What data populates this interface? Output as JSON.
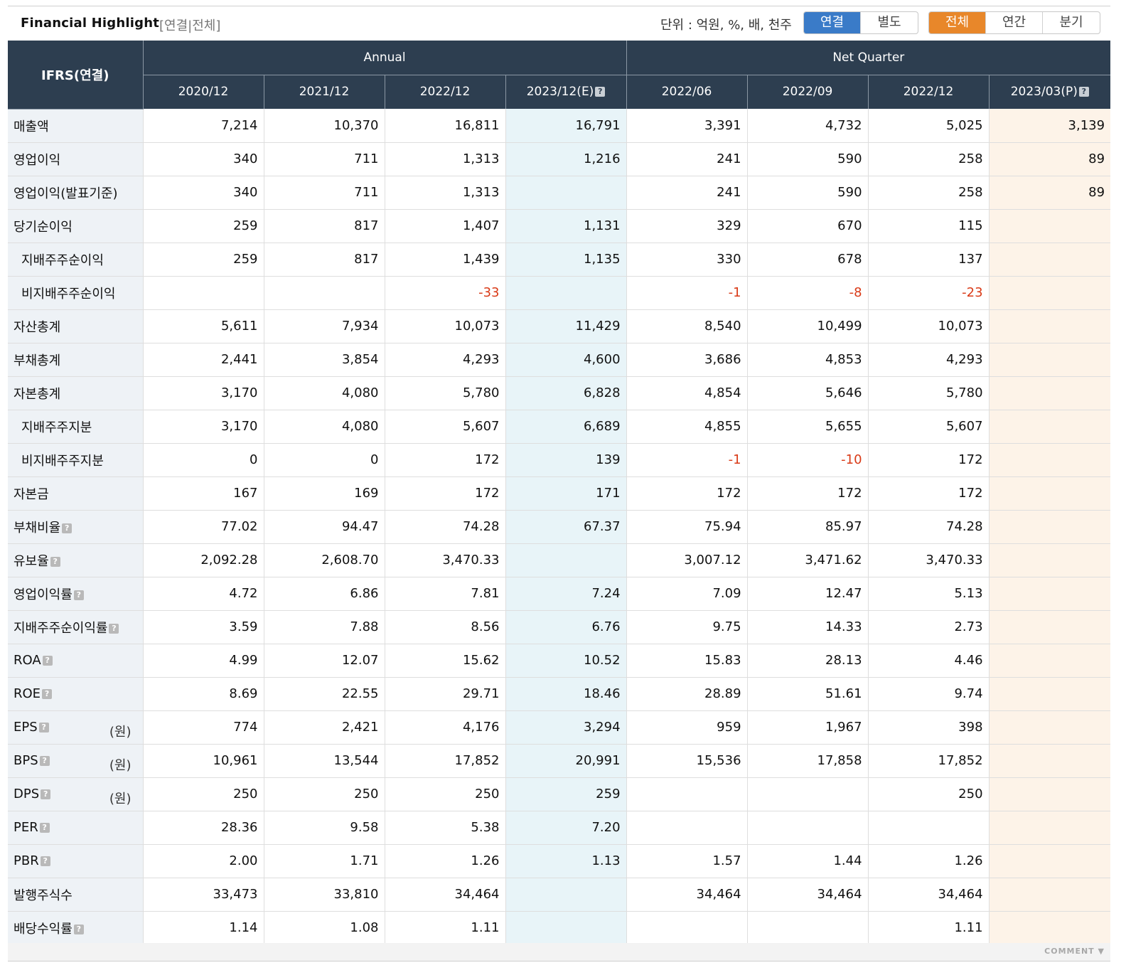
{
  "header": {
    "title": "Financial Highlight",
    "subtitle": "[연결|전체]",
    "unit_label": "단위 : 억원, %, 배, 천주",
    "basis_buttons": [
      "연결",
      "별도"
    ],
    "basis_active": 0,
    "period_buttons": [
      "전체",
      "연간",
      "분기"
    ],
    "period_active": 0
  },
  "table": {
    "corner": "IFRS(연결)",
    "group_annual": "Annual",
    "group_quarter": "Net Quarter",
    "columns": [
      "2020/12",
      "2021/12",
      "2022/12",
      "2023/12(E)",
      "2022/06",
      "2022/09",
      "2022/12",
      "2023/03(P)"
    ],
    "columns_help": [
      false,
      false,
      false,
      true,
      false,
      false,
      false,
      true
    ],
    "rows": [
      {
        "label": "매출액",
        "sub": false,
        "help": false,
        "unit": "",
        "values": [
          "7,214",
          "10,370",
          "16,811",
          "16,791",
          "3,391",
          "4,732",
          "5,025",
          "3,139"
        ]
      },
      {
        "label": "영업이익",
        "sub": false,
        "help": false,
        "unit": "",
        "values": [
          "340",
          "711",
          "1,313",
          "1,216",
          "241",
          "590",
          "258",
          "89"
        ]
      },
      {
        "label": "영업이익(발표기준)",
        "sub": false,
        "help": false,
        "unit": "",
        "values": [
          "340",
          "711",
          "1,313",
          "",
          "241",
          "590",
          "258",
          "89"
        ]
      },
      {
        "label": "당기순이익",
        "sub": false,
        "help": false,
        "unit": "",
        "values": [
          "259",
          "817",
          "1,407",
          "1,131",
          "329",
          "670",
          "115",
          ""
        ]
      },
      {
        "label": "지배주주순이익",
        "sub": true,
        "help": false,
        "unit": "",
        "values": [
          "259",
          "817",
          "1,439",
          "1,135",
          "330",
          "678",
          "137",
          ""
        ]
      },
      {
        "label": "비지배주주순이익",
        "sub": true,
        "help": false,
        "unit": "",
        "values": [
          "",
          "",
          "-33",
          "",
          "-1",
          "-8",
          "-23",
          ""
        ]
      },
      {
        "label": "자산총계",
        "sub": false,
        "help": false,
        "unit": "",
        "values": [
          "5,611",
          "7,934",
          "10,073",
          "11,429",
          "8,540",
          "10,499",
          "10,073",
          ""
        ]
      },
      {
        "label": "부채총계",
        "sub": false,
        "help": false,
        "unit": "",
        "values": [
          "2,441",
          "3,854",
          "4,293",
          "4,600",
          "3,686",
          "4,853",
          "4,293",
          ""
        ]
      },
      {
        "label": "자본총계",
        "sub": false,
        "help": false,
        "unit": "",
        "values": [
          "3,170",
          "4,080",
          "5,780",
          "6,828",
          "4,854",
          "5,646",
          "5,780",
          ""
        ]
      },
      {
        "label": "지배주주지분",
        "sub": true,
        "help": false,
        "unit": "",
        "values": [
          "3,170",
          "4,080",
          "5,607",
          "6,689",
          "4,855",
          "5,655",
          "5,607",
          ""
        ]
      },
      {
        "label": "비지배주주지분",
        "sub": true,
        "help": false,
        "unit": "",
        "values": [
          "0",
          "0",
          "172",
          "139",
          "-1",
          "-10",
          "172",
          ""
        ]
      },
      {
        "label": "자본금",
        "sub": false,
        "help": false,
        "unit": "",
        "values": [
          "167",
          "169",
          "172",
          "171",
          "172",
          "172",
          "172",
          ""
        ]
      },
      {
        "label": "부채비율",
        "sub": false,
        "help": true,
        "unit": "",
        "values": [
          "77.02",
          "94.47",
          "74.28",
          "67.37",
          "75.94",
          "85.97",
          "74.28",
          ""
        ]
      },
      {
        "label": "유보율",
        "sub": false,
        "help": true,
        "unit": "",
        "values": [
          "2,092.28",
          "2,608.70",
          "3,470.33",
          "",
          "3,007.12",
          "3,471.62",
          "3,470.33",
          ""
        ]
      },
      {
        "label": "영업이익률",
        "sub": false,
        "help": true,
        "unit": "",
        "values": [
          "4.72",
          "6.86",
          "7.81",
          "7.24",
          "7.09",
          "12.47",
          "5.13",
          ""
        ]
      },
      {
        "label": "지배주주순이익률",
        "sub": false,
        "help": true,
        "unit": "",
        "values": [
          "3.59",
          "7.88",
          "8.56",
          "6.76",
          "9.75",
          "14.33",
          "2.73",
          ""
        ]
      },
      {
        "label": "ROA",
        "sub": false,
        "help": true,
        "unit": "",
        "values": [
          "4.99",
          "12.07",
          "15.62",
          "10.52",
          "15.83",
          "28.13",
          "4.46",
          ""
        ]
      },
      {
        "label": "ROE",
        "sub": false,
        "help": true,
        "unit": "",
        "values": [
          "8.69",
          "22.55",
          "29.71",
          "18.46",
          "28.89",
          "51.61",
          "9.74",
          ""
        ]
      },
      {
        "label": "EPS",
        "sub": false,
        "help": true,
        "unit": "(원)",
        "values": [
          "774",
          "2,421",
          "4,176",
          "3,294",
          "959",
          "1,967",
          "398",
          ""
        ]
      },
      {
        "label": "BPS",
        "sub": false,
        "help": true,
        "unit": "(원)",
        "values": [
          "10,961",
          "13,544",
          "17,852",
          "20,991",
          "15,536",
          "17,858",
          "17,852",
          ""
        ]
      },
      {
        "label": "DPS",
        "sub": false,
        "help": true,
        "unit": "(원)",
        "values": [
          "250",
          "250",
          "250",
          "259",
          "",
          "",
          "250",
          ""
        ]
      },
      {
        "label": "PER",
        "sub": false,
        "help": true,
        "unit": "",
        "values": [
          "28.36",
          "9.58",
          "5.38",
          "7.20",
          "",
          "",
          "",
          ""
        ]
      },
      {
        "label": "PBR",
        "sub": false,
        "help": true,
        "unit": "",
        "values": [
          "2.00",
          "1.71",
          "1.26",
          "1.13",
          "1.57",
          "1.44",
          "1.26",
          ""
        ]
      },
      {
        "label": "발행주식수",
        "sub": false,
        "help": false,
        "unit": "",
        "values": [
          "33,473",
          "33,810",
          "34,464",
          "",
          "34,464",
          "34,464",
          "34,464",
          ""
        ]
      },
      {
        "label": "배당수익률",
        "sub": false,
        "help": true,
        "unit": "",
        "values": [
          "1.14",
          "1.08",
          "1.11",
          "",
          "",
          "",
          "1.11",
          ""
        ]
      }
    ]
  },
  "footer": {
    "comment_label": "COMMENT"
  },
  "colors": {
    "header_bg": "#2d3e50",
    "active_blue": "#3a7bc8",
    "active_orange": "#e8872a",
    "negative": "#d93a17",
    "estimate_bg": "#e8f4f8",
    "provisional_bg": "#fdf3e8"
  },
  "icons": {
    "help": "question-mark-icon",
    "comment_toggle": "chevron-down-icon"
  }
}
